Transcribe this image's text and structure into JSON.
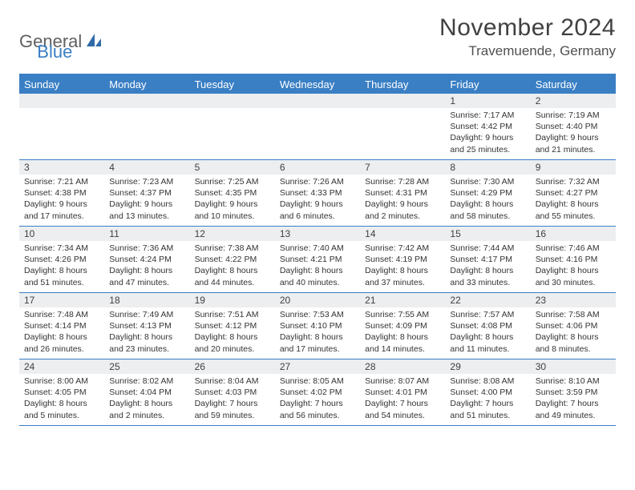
{
  "logo": {
    "text1": "General",
    "text2": "Blue"
  },
  "title": "November 2024",
  "location": "Travemuende, Germany",
  "colors": {
    "accent": "#3a7fc4",
    "headerRow": "#eceef0",
    "text": "#333333",
    "background": "#ffffff"
  },
  "dayNames": [
    "Sunday",
    "Monday",
    "Tuesday",
    "Wednesday",
    "Thursday",
    "Friday",
    "Saturday"
  ],
  "weeks": [
    [
      null,
      null,
      null,
      null,
      null,
      {
        "n": "1",
        "sr": "7:17 AM",
        "ss": "4:42 PM",
        "dl": "9 hours and 25 minutes."
      },
      {
        "n": "2",
        "sr": "7:19 AM",
        "ss": "4:40 PM",
        "dl": "9 hours and 21 minutes."
      }
    ],
    [
      {
        "n": "3",
        "sr": "7:21 AM",
        "ss": "4:38 PM",
        "dl": "9 hours and 17 minutes."
      },
      {
        "n": "4",
        "sr": "7:23 AM",
        "ss": "4:37 PM",
        "dl": "9 hours and 13 minutes."
      },
      {
        "n": "5",
        "sr": "7:25 AM",
        "ss": "4:35 PM",
        "dl": "9 hours and 10 minutes."
      },
      {
        "n": "6",
        "sr": "7:26 AM",
        "ss": "4:33 PM",
        "dl": "9 hours and 6 minutes."
      },
      {
        "n": "7",
        "sr": "7:28 AM",
        "ss": "4:31 PM",
        "dl": "9 hours and 2 minutes."
      },
      {
        "n": "8",
        "sr": "7:30 AM",
        "ss": "4:29 PM",
        "dl": "8 hours and 58 minutes."
      },
      {
        "n": "9",
        "sr": "7:32 AM",
        "ss": "4:27 PM",
        "dl": "8 hours and 55 minutes."
      }
    ],
    [
      {
        "n": "10",
        "sr": "7:34 AM",
        "ss": "4:26 PM",
        "dl": "8 hours and 51 minutes."
      },
      {
        "n": "11",
        "sr": "7:36 AM",
        "ss": "4:24 PM",
        "dl": "8 hours and 47 minutes."
      },
      {
        "n": "12",
        "sr": "7:38 AM",
        "ss": "4:22 PM",
        "dl": "8 hours and 44 minutes."
      },
      {
        "n": "13",
        "sr": "7:40 AM",
        "ss": "4:21 PM",
        "dl": "8 hours and 40 minutes."
      },
      {
        "n": "14",
        "sr": "7:42 AM",
        "ss": "4:19 PM",
        "dl": "8 hours and 37 minutes."
      },
      {
        "n": "15",
        "sr": "7:44 AM",
        "ss": "4:17 PM",
        "dl": "8 hours and 33 minutes."
      },
      {
        "n": "16",
        "sr": "7:46 AM",
        "ss": "4:16 PM",
        "dl": "8 hours and 30 minutes."
      }
    ],
    [
      {
        "n": "17",
        "sr": "7:48 AM",
        "ss": "4:14 PM",
        "dl": "8 hours and 26 minutes."
      },
      {
        "n": "18",
        "sr": "7:49 AM",
        "ss": "4:13 PM",
        "dl": "8 hours and 23 minutes."
      },
      {
        "n": "19",
        "sr": "7:51 AM",
        "ss": "4:12 PM",
        "dl": "8 hours and 20 minutes."
      },
      {
        "n": "20",
        "sr": "7:53 AM",
        "ss": "4:10 PM",
        "dl": "8 hours and 17 minutes."
      },
      {
        "n": "21",
        "sr": "7:55 AM",
        "ss": "4:09 PM",
        "dl": "8 hours and 14 minutes."
      },
      {
        "n": "22",
        "sr": "7:57 AM",
        "ss": "4:08 PM",
        "dl": "8 hours and 11 minutes."
      },
      {
        "n": "23",
        "sr": "7:58 AM",
        "ss": "4:06 PM",
        "dl": "8 hours and 8 minutes."
      }
    ],
    [
      {
        "n": "24",
        "sr": "8:00 AM",
        "ss": "4:05 PM",
        "dl": "8 hours and 5 minutes."
      },
      {
        "n": "25",
        "sr": "8:02 AM",
        "ss": "4:04 PM",
        "dl": "8 hours and 2 minutes."
      },
      {
        "n": "26",
        "sr": "8:04 AM",
        "ss": "4:03 PM",
        "dl": "7 hours and 59 minutes."
      },
      {
        "n": "27",
        "sr": "8:05 AM",
        "ss": "4:02 PM",
        "dl": "7 hours and 56 minutes."
      },
      {
        "n": "28",
        "sr": "8:07 AM",
        "ss": "4:01 PM",
        "dl": "7 hours and 54 minutes."
      },
      {
        "n": "29",
        "sr": "8:08 AM",
        "ss": "4:00 PM",
        "dl": "7 hours and 51 minutes."
      },
      {
        "n": "30",
        "sr": "8:10 AM",
        "ss": "3:59 PM",
        "dl": "7 hours and 49 minutes."
      }
    ]
  ],
  "labels": {
    "sunrise": "Sunrise:",
    "sunset": "Sunset:",
    "daylight": "Daylight:"
  }
}
